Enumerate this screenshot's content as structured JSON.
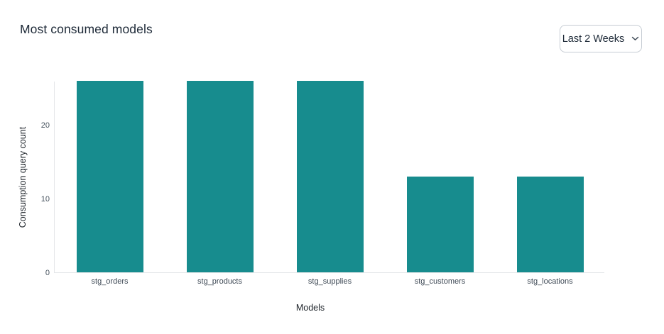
{
  "header": {
    "title": "Most consumed models",
    "time_range": {
      "selected_label": "Last 2 Weeks",
      "chevron_icon": "chevron-down"
    }
  },
  "colors": {
    "bar": "#178c8e",
    "axis_line": "#e4e6e9",
    "title_text": "#1e2a38",
    "tick_text": "#46525e"
  },
  "chart_data": {
    "type": "bar",
    "title": "Most consumed models",
    "categories": [
      "stg_orders",
      "stg_products",
      "stg_supplies",
      "stg_customers",
      "stg_locations"
    ],
    "values": [
      26,
      26,
      26,
      13,
      13
    ],
    "xlabel": "Models",
    "ylabel": "Consumption query count",
    "ylim": [
      0,
      26
    ],
    "yticks": [
      0,
      10,
      20
    ],
    "grid": false,
    "legend": "none",
    "bar_color": "#178c8e"
  }
}
